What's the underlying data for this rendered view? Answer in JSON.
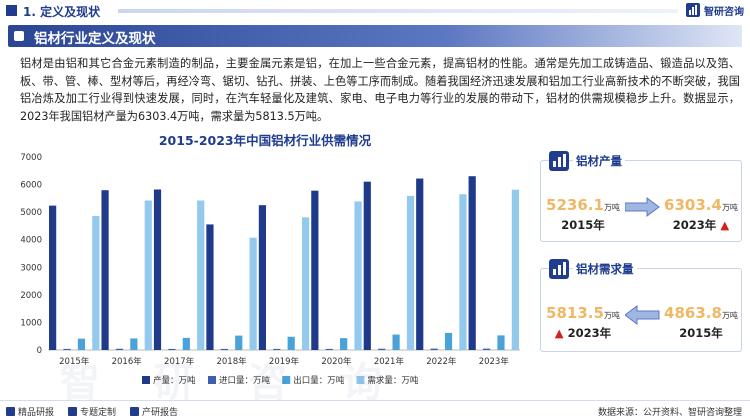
{
  "header": {
    "section_title": "1. 定义及现状",
    "brand": "智研咨询"
  },
  "section": {
    "title": "铝材行业定义及现状"
  },
  "intro": "铝材是由铝和其它合金元素制造的制品，主要金属元素是铝，在加上一些合金元素，提高铝材的性能。通常是先加工成铸造品、锻造品以及箔、板、带、管、棒、型材等后，再经冷弯、锯切、钻孔、拼装、上色等工序而制成。随着我国经济迅速发展和铝加工行业高新技术的不断突破，我国铝冶炼及加工行业得到快速发展，同时，在汽车轻量化及建筑、家电、电子电力等行业的发展的带动下，铝材的供需规模稳步上升。数据显示，2023年我国铝材产量为6303.4万吨，需求量为5813.5万吨。",
  "chart_data": {
    "type": "bar",
    "title": "2015-2023年中国铝材行业供需情况",
    "categories": [
      "2015年",
      "2016年",
      "2017年",
      "2018年",
      "2019年",
      "2020年",
      "2021年",
      "2022年",
      "2023年"
    ],
    "series": [
      {
        "name": "产量：万吨",
        "color": "#1f3a8a",
        "values": [
          5236.1,
          5796,
          5822,
          4555,
          5252,
          5779,
          6105,
          6219,
          6303.4
        ]
      },
      {
        "name": "进口量：万吨",
        "color": "#3d5fae",
        "values": [
          40,
          45,
          40,
          40,
          40,
          40,
          45,
          50,
          50
        ]
      },
      {
        "name": "出口量：万吨",
        "color": "#4aa3d8",
        "values": [
          412,
          420,
          440,
          522,
          480,
          430,
          560,
          620,
          530
        ]
      },
      {
        "name": "需求量：万吨",
        "color": "#93c9ec",
        "values": [
          4863.8,
          5421,
          5422,
          4073,
          4812,
          5389,
          5590,
          5649,
          5813.5
        ]
      }
    ],
    "ylim": [
      0,
      7000
    ],
    "yticks": [
      0,
      1000,
      2000,
      3000,
      4000,
      5000,
      6000,
      7000
    ],
    "grid": false,
    "legend": "bottom"
  },
  "panels": {
    "production": {
      "label": "铝材产量",
      "from_value": "5236.1",
      "from_unit": "万吨",
      "from_year": "2015年",
      "to_value": "6303.4",
      "to_unit": "万吨",
      "to_year": "2023年"
    },
    "demand": {
      "label": "铝材需求量",
      "left_value": "5813.5",
      "left_unit": "万吨",
      "left_year": "2023年",
      "right_value": "4863.8",
      "right_unit": "万吨",
      "right_year": "2015年"
    }
  },
  "footer": {
    "items": [
      "精品研报",
      "专题定制",
      "产研报告"
    ],
    "source": "数据来源：公开资料、智研咨询整理"
  },
  "watermark": "智 研 咨 询"
}
